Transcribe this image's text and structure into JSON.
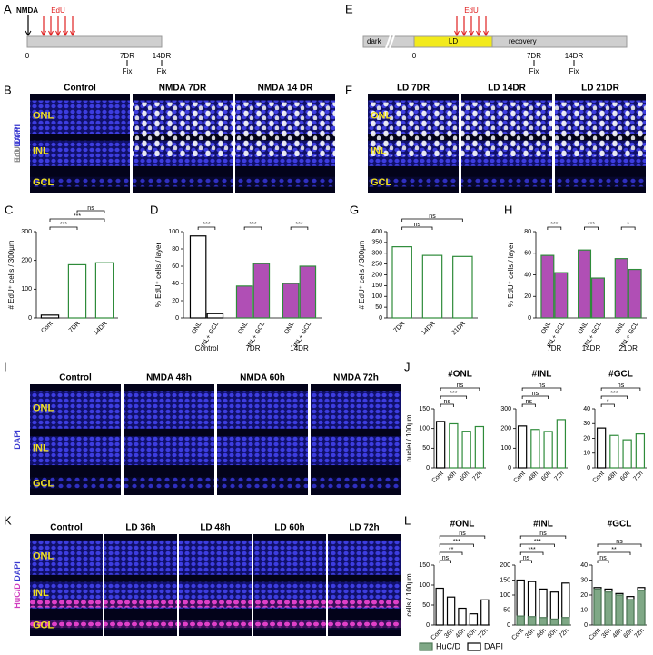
{
  "figure": {
    "a": {
      "letter": "A",
      "injury": "NMDA",
      "pulse": "EdU",
      "start": "0",
      "fix": [
        {
          "day": "7DR",
          "label": "Fix"
        },
        {
          "day": "14DR",
          "label": "Fix"
        }
      ]
    },
    "e": {
      "letter": "E",
      "dark": "dark",
      "light": "LD",
      "pulse": "EdU",
      "recovery": "recovery",
      "start": "0",
      "fix": [
        {
          "day": "7DR",
          "label": "Fix"
        },
        {
          "day": "14DR",
          "label": "Fix"
        }
      ]
    },
    "b": {
      "letter": "B",
      "stain": [
        {
          "text": "EdU",
          "color": "#8a8a8a"
        },
        {
          "text": "DAPI",
          "color": "#3a3ad0"
        }
      ],
      "panels": [
        "Control",
        "NMDA 7DR",
        "NMDA 14 DR"
      ],
      "layers": [
        "ONL",
        "INL",
        "GCL"
      ]
    },
    "f": {
      "letter": "F",
      "stain": [
        {
          "text": "LD",
          "color": "#8a8a8a"
        },
        {
          "text": "DAPI",
          "color": "#3a3ad0"
        }
      ],
      "panels": [
        "LD 7DR",
        "LD 14DR",
        "LD 21DR"
      ],
      "layers": [
        "ONL",
        "INL",
        "GCL"
      ]
    },
    "i": {
      "letter": "I",
      "stain": [
        {
          "text": "DAPI",
          "color": "#3a3ad0"
        }
      ],
      "panels": [
        "Control",
        "NMDA 48h",
        "NMDA 60h",
        "NMDA 72h"
      ],
      "layers": [
        "ONL",
        "INL",
        "GCL"
      ]
    },
    "k": {
      "letter": "K",
      "stain": [
        {
          "text": "HuC/D",
          "color": "#d03cbf"
        },
        {
          "text": "DAPI",
          "color": "#3a3ad0"
        }
      ],
      "panels": [
        "Control",
        "LD 36h",
        "LD 48h",
        "LD 60h",
        "LD 72h"
      ],
      "layers": [
        "ONL",
        "INL",
        "GCL"
      ]
    },
    "j": {
      "letter": "J"
    },
    "l": {
      "letter": "L"
    }
  },
  "chart_data": [
    {
      "type": "bar",
      "letter": "C",
      "ylabel": "# EdU⁺ cells / 300µm",
      "categories": [
        "Cont",
        "7DR",
        "14DR"
      ],
      "values": [
        10,
        185,
        192
      ],
      "fill": "#ffffff",
      "edge_colors": [
        "#000000",
        "#2e8b3a",
        "#2e8b3a"
      ],
      "ylim": [
        0,
        300
      ],
      "yticks": [
        0,
        100,
        200,
        300
      ],
      "comparisons": [
        {
          "between": [
            "Cont",
            "7DR"
          ],
          "label": "***"
        },
        {
          "between": [
            "Cont",
            "14DR"
          ],
          "label": "***"
        },
        {
          "between": [
            "7DR",
            "14DR"
          ],
          "label": "ns"
        }
      ]
    },
    {
      "type": "grouped_bar",
      "letter": "D",
      "ylabel": "% EdU⁺ cells / layer",
      "groups": [
        {
          "name": "Control",
          "fill": "#ffffff",
          "edge": "#000000"
        },
        {
          "name": "7DR"
        },
        {
          "name": "14DR"
        }
      ],
      "series": [
        {
          "name": "ONL",
          "color": "#b04fb5",
          "edge": "#2e8b3a",
          "values": [
            95,
            37,
            40
          ]
        },
        {
          "name": "INL+ GCL",
          "color": "#b04fb5",
          "edge": "#2e8b3a",
          "values": [
            5,
            63,
            60
          ]
        }
      ],
      "ylim": [
        0,
        100
      ],
      "yticks": [
        0,
        20,
        40,
        60,
        80,
        100
      ],
      "comparisons": [
        {
          "group": "Control",
          "label": "***"
        },
        {
          "group": "7DR",
          "label": "***"
        },
        {
          "group": "14DR",
          "label": "***"
        }
      ]
    },
    {
      "type": "bar",
      "letter": "G",
      "ylabel": "# EdU⁺ cells / 300µm",
      "categories": [
        "7DR",
        "14DR",
        "21DR"
      ],
      "values": [
        330,
        290,
        285
      ],
      "fill": "#ffffff",
      "edge_colors": [
        "#2e8b3a",
        "#2e8b3a",
        "#2e8b3a"
      ],
      "ylim": [
        0,
        400
      ],
      "yticks": [
        0,
        50,
        100,
        150,
        200,
        250,
        300,
        350,
        400
      ],
      "comparisons": [
        {
          "between": [
            "7DR",
            "14DR"
          ],
          "label": "ns"
        },
        {
          "between": [
            "7DR",
            "21DR"
          ],
          "label": "ns"
        }
      ]
    },
    {
      "type": "grouped_bar",
      "letter": "H",
      "ylabel": "% EdU⁺ cells / layer",
      "groups": [
        {
          "name": "7DR"
        },
        {
          "name": "14DR"
        },
        {
          "name": "21DR"
        }
      ],
      "series": [
        {
          "name": "ONL",
          "color": "#b04fb5",
          "edge": "#2e8b3a",
          "values": [
            58,
            63,
            55
          ]
        },
        {
          "name": "INL+ GCL",
          "color": "#b04fb5",
          "edge": "#2e8b3a",
          "values": [
            42,
            37,
            45
          ]
        }
      ],
      "ylim": [
        0,
        80
      ],
      "yticks": [
        0,
        20,
        40,
        60,
        80
      ],
      "comparisons": [
        {
          "group": "7DR",
          "label": "***"
        },
        {
          "group": "14DR",
          "label": "***"
        },
        {
          "group": "21DR",
          "label": "*"
        }
      ]
    },
    {
      "type": "bar",
      "title": "#ONL",
      "ylabel": "nuclei / 100µm",
      "categories": [
        "Cont",
        "48h",
        "60h",
        "72h"
      ],
      "values": [
        118,
        112,
        93,
        105
      ],
      "fill": "#ffffff",
      "edge_colors": [
        "#000000",
        "#2e8b3a",
        "#2e8b3a",
        "#2e8b3a"
      ],
      "ylim": [
        0,
        150
      ],
      "yticks": [
        0,
        50,
        100,
        150
      ],
      "comparisons": [
        {
          "between": [
            "Cont",
            "48h"
          ],
          "label": "ns"
        },
        {
          "between": [
            "Cont",
            "60h"
          ],
          "label": "***"
        },
        {
          "between": [
            "Cont",
            "72h"
          ],
          "label": "ns"
        }
      ]
    },
    {
      "type": "bar",
      "title": "#INL",
      "categories": [
        "Cont",
        "48h",
        "60h",
        "72h"
      ],
      "values": [
        213,
        195,
        185,
        245
      ],
      "fill": "#ffffff",
      "edge_colors": [
        "#000000",
        "#2e8b3a",
        "#2e8b3a",
        "#2e8b3a"
      ],
      "ylim": [
        0,
        300
      ],
      "yticks": [
        0,
        100,
        200,
        300
      ],
      "comparisons": [
        {
          "between": [
            "Cont",
            "48h"
          ],
          "label": "ns"
        },
        {
          "between": [
            "Cont",
            "60h"
          ],
          "label": "ns"
        },
        {
          "between": [
            "Cont",
            "72h"
          ],
          "label": "ns"
        }
      ]
    },
    {
      "type": "bar",
      "title": "#GCL",
      "categories": [
        "Cont",
        "48h",
        "60h",
        "72h"
      ],
      "values": [
        27,
        22,
        19,
        23
      ],
      "fill": "#ffffff",
      "edge_colors": [
        "#000000",
        "#2e8b3a",
        "#2e8b3a",
        "#2e8b3a"
      ],
      "ylim": [
        0,
        40
      ],
      "yticks": [
        0,
        10,
        20,
        30,
        40
      ],
      "comparisons": [
        {
          "between": [
            "Cont",
            "48h"
          ],
          "label": "*"
        },
        {
          "between": [
            "Cont",
            "60h"
          ],
          "label": "***"
        },
        {
          "between": [
            "Cont",
            "72h"
          ],
          "label": "ns"
        }
      ]
    },
    {
      "type": "overlay_bar",
      "title": "#ONL",
      "ylabel": "cells / 100µm",
      "categories": [
        "Cont",
        "36h",
        "48h",
        "60h",
        "72h"
      ],
      "series": [
        {
          "name": "DAPI",
          "color": "#ffffff",
          "edge": "#000000",
          "values": [
            92,
            70,
            42,
            28,
            63
          ]
        }
      ],
      "ylim": [
        0,
        150
      ],
      "yticks": [
        0,
        50,
        100,
        150
      ],
      "comparisons": [
        {
          "between": [
            "Cont",
            "36h"
          ],
          "label": "ns"
        },
        {
          "between": [
            "Cont",
            "48h"
          ],
          "label": "**"
        },
        {
          "between": [
            "Cont",
            "60h"
          ],
          "label": "***"
        },
        {
          "between": [
            "Cont",
            "72h"
          ],
          "label": "ns"
        }
      ]
    },
    {
      "type": "overlay_bar",
      "title": "#INL",
      "categories": [
        "Cont",
        "36h",
        "48h",
        "60h",
        "72h"
      ],
      "series": [
        {
          "name": "DAPI",
          "color": "#ffffff",
          "edge": "#000000",
          "values": [
            150,
            145,
            120,
            110,
            140
          ]
        },
        {
          "name": "HuC/D",
          "color": "#7fa886",
          "edge": "#4f7a58",
          "values": [
            30,
            28,
            25,
            20,
            25
          ]
        }
      ],
      "ylim": [
        0,
        200
      ],
      "yticks": [
        0,
        50,
        100,
        150,
        200
      ],
      "comparisons": [
        {
          "between": [
            "Cont",
            "36h"
          ],
          "label": "ns"
        },
        {
          "between": [
            "Cont",
            "48h"
          ],
          "label": "***"
        },
        {
          "between": [
            "Cont",
            "60h"
          ],
          "label": "***"
        },
        {
          "between": [
            "Cont",
            "72h"
          ],
          "label": "ns"
        }
      ]
    },
    {
      "type": "overlay_bar",
      "title": "#GCL",
      "categories": [
        "Cont",
        "36h",
        "48h",
        "60h",
        "72h"
      ],
      "series": [
        {
          "name": "DAPI",
          "color": "#ffffff",
          "edge": "#000000",
          "values": [
            25,
            24,
            21,
            19,
            25
          ]
        },
        {
          "name": "HuC/D",
          "color": "#7fa886",
          "edge": "#4f7a58",
          "values": [
            24,
            22,
            20,
            17,
            23
          ]
        }
      ],
      "ylim": [
        0,
        40
      ],
      "yticks": [
        0,
        10,
        20,
        30,
        40
      ],
      "legend": "bottom",
      "comparisons": [
        {
          "between": [
            "Cont",
            "36h"
          ],
          "label": "ns"
        },
        {
          "between": [
            "Cont",
            "60h"
          ],
          "label": "**"
        },
        {
          "between": [
            "Cont",
            "72h"
          ],
          "label": "ns"
        }
      ]
    }
  ]
}
